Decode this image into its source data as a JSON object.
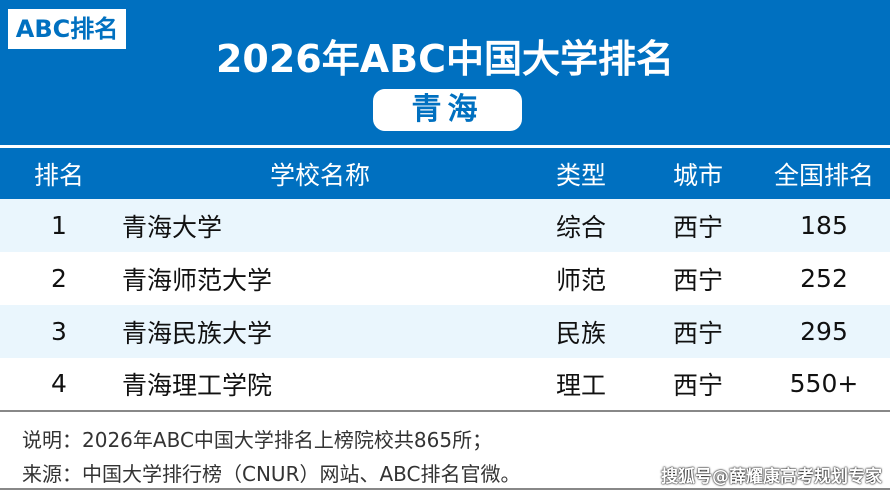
{
  "logo": "ABC排名",
  "title": "2026年ABC中国大学排名",
  "province": "青海",
  "headers": [
    "排名",
    "学校名称",
    "类型",
    "城市",
    "全国排名"
  ],
  "rows": [
    {
      "rank": "1",
      "name": "青海大学",
      "type": "综合",
      "city": "西宁",
      "national": "185"
    },
    {
      "rank": "2",
      "name": "青海师范大学",
      "type": "师范",
      "city": "西宁",
      "national": "252"
    },
    {
      "rank": "3",
      "name": "青海民族大学",
      "type": "民族",
      "city": "西宁",
      "national": "295"
    },
    {
      "rank": "4",
      "name": "青海理工学院",
      "type": "理工",
      "city": "西宁",
      "national": "550+"
    }
  ],
  "footer": {
    "note": "说明：2026年ABC中国大学排名上榜院校共865所；",
    "source": "来源：中国大学排行榜（CNUR）网站、ABC排名官微。",
    "watermark": "搜狐号@薛耀康高考规划专家"
  }
}
